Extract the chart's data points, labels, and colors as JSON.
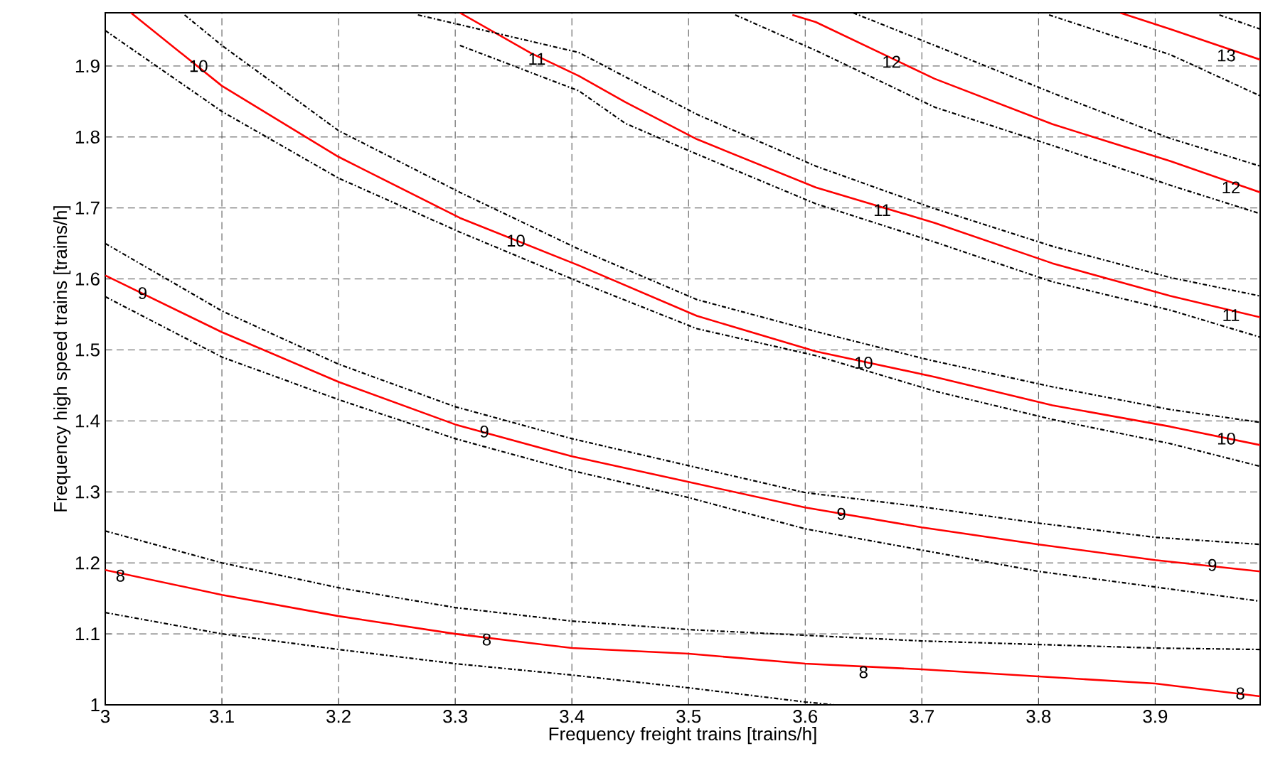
{
  "chart_data": {
    "type": "line",
    "xlabel": "Frequency freight trains [trains/h]",
    "ylabel": "Frequency high speed trains [trains/h]",
    "xlim": [
      3,
      3.99
    ],
    "ylim": [
      1,
      1.975
    ],
    "xticks": [
      3,
      3.1,
      3.2,
      3.3,
      3.4,
      3.5,
      3.6,
      3.7,
      3.8,
      3.9
    ],
    "yticks": [
      1,
      1.1,
      1.2,
      1.3,
      1.4,
      1.5,
      1.6,
      1.7,
      1.8,
      1.9
    ],
    "grid": true,
    "series": [
      {
        "color": "#ff0000",
        "line_style": "solid",
        "x": [
          3.0,
          3.1,
          3.2,
          3.3,
          3.4,
          3.5,
          3.6,
          3.7,
          3.8,
          3.9,
          3.99
        ],
        "values": [
          1.19,
          1.155,
          1.125,
          1.1,
          1.08,
          1.072,
          1.058,
          1.05,
          1.04,
          1.03,
          1.012
        ]
      },
      {
        "color": "#000000",
        "line_style": "dashed",
        "x": [
          3.0,
          3.1,
          3.2,
          3.3,
          3.4,
          3.5,
          3.6,
          3.7,
          3.8,
          3.9,
          3.99
        ],
        "values": [
          1.245,
          1.2,
          1.165,
          1.137,
          1.118,
          1.106,
          1.098,
          1.09,
          1.085,
          1.08,
          1.078
        ]
      },
      {
        "color": "#000000",
        "line_style": "dashed",
        "x": [
          3.0,
          3.1,
          3.2,
          3.3,
          3.4,
          3.5,
          3.6,
          3.625
        ],
        "values": [
          1.13,
          1.1,
          1.078,
          1.058,
          1.042,
          1.024,
          1.004,
          1.0
        ]
      },
      {
        "color": "#ff0000",
        "line_style": "solid",
        "x": [
          3.0,
          3.1,
          3.2,
          3.3,
          3.4,
          3.5,
          3.6,
          3.7,
          3.8,
          3.9,
          3.99
        ],
        "values": [
          1.605,
          1.525,
          1.455,
          1.395,
          1.35,
          1.314,
          1.278,
          1.25,
          1.226,
          1.204,
          1.188
        ]
      },
      {
        "color": "#000000",
        "line_style": "dashed",
        "x": [
          3.0,
          3.1,
          3.2,
          3.3,
          3.4,
          3.5,
          3.6,
          3.7,
          3.8,
          3.9,
          3.99
        ],
        "values": [
          1.65,
          1.555,
          1.48,
          1.42,
          1.375,
          1.337,
          1.299,
          1.279,
          1.256,
          1.236,
          1.226
        ]
      },
      {
        "color": "#000000",
        "line_style": "dashed",
        "x": [
          3.0,
          3.1,
          3.2,
          3.3,
          3.4,
          3.5,
          3.6,
          3.7,
          3.8,
          3.9,
          3.99
        ],
        "values": [
          1.575,
          1.49,
          1.43,
          1.375,
          1.33,
          1.292,
          1.248,
          1.218,
          1.188,
          1.166,
          1.146
        ]
      },
      {
        "color": "#ff0000",
        "line_style": "solid",
        "x": [
          3.022,
          3.1,
          3.2,
          3.304,
          3.406,
          3.507,
          3.609,
          3.711,
          3.812,
          3.913,
          3.99
        ],
        "values": [
          1.975,
          1.872,
          1.772,
          1.686,
          1.619,
          1.548,
          1.498,
          1.462,
          1.422,
          1.392,
          1.366
        ]
      },
      {
        "color": "#000000",
        "line_style": "dashed",
        "x": [
          3.068,
          3.1,
          3.2,
          3.304,
          3.406,
          3.507,
          3.609,
          3.706,
          3.812,
          3.913,
          3.99
        ],
        "values": [
          1.972,
          1.929,
          1.809,
          1.722,
          1.642,
          1.571,
          1.526,
          1.486,
          1.448,
          1.416,
          1.398
        ]
      },
      {
        "color": "#000000",
        "line_style": "dashed",
        "x": [
          3.0,
          3.1,
          3.2,
          3.304,
          3.406,
          3.507,
          3.609,
          3.711,
          3.812,
          3.913,
          3.99
        ],
        "values": [
          1.95,
          1.836,
          1.742,
          1.666,
          1.596,
          1.53,
          1.492,
          1.442,
          1.402,
          1.368,
          1.336
        ]
      },
      {
        "color": "#ff0000",
        "line_style": "solid",
        "x": [
          3.304,
          3.365,
          3.406,
          3.446,
          3.507,
          3.609,
          3.711,
          3.812,
          3.913,
          3.99
        ],
        "values": [
          1.975,
          1.918,
          1.886,
          1.849,
          1.797,
          1.729,
          1.679,
          1.622,
          1.576,
          1.546
        ]
      },
      {
        "color": "#000000",
        "line_style": "dashed",
        "x": [
          3.268,
          3.406,
          3.507,
          3.609,
          3.711,
          3.812,
          3.913,
          3.99
        ],
        "values": [
          1.972,
          1.919,
          1.832,
          1.759,
          1.699,
          1.646,
          1.602,
          1.576
        ]
      },
      {
        "color": "#000000",
        "line_style": "dashed",
        "x": [
          3.304,
          3.406,
          3.446,
          3.507,
          3.609,
          3.711,
          3.812,
          3.913,
          3.99
        ],
        "values": [
          1.929,
          1.865,
          1.819,
          1.776,
          1.706,
          1.652,
          1.596,
          1.556,
          1.518
        ]
      },
      {
        "color": "#ff0000",
        "line_style": "solid",
        "x": [
          3.589,
          3.609,
          3.711,
          3.812,
          3.913,
          3.99
        ],
        "values": [
          1.972,
          1.962,
          1.882,
          1.818,
          1.766,
          1.722
        ]
      },
      {
        "color": "#000000",
        "line_style": "dashed",
        "x": [
          3.641,
          3.711,
          3.812,
          3.913,
          3.99
        ],
        "values": [
          1.975,
          1.929,
          1.862,
          1.798,
          1.759
        ]
      },
      {
        "color": "#000000",
        "line_style": "dashed",
        "x": [
          3.54,
          3.609,
          3.711,
          3.812,
          3.913,
          3.99
        ],
        "values": [
          1.972,
          1.922,
          1.842,
          1.788,
          1.732,
          1.692
        ]
      },
      {
        "color": "#ff0000",
        "line_style": "solid",
        "x": [
          3.87,
          3.913,
          3.99
        ],
        "values": [
          1.975,
          1.952,
          1.909
        ]
      },
      {
        "color": "#000000",
        "line_style": "dashed",
        "x": [
          3.955,
          3.99
        ],
        "values": [
          1.972,
          1.952
        ]
      },
      {
        "color": "#000000",
        "line_style": "dashed",
        "x": [
          3.809,
          3.913,
          3.99
        ],
        "values": [
          1.972,
          1.916,
          1.858
        ]
      }
    ],
    "annotations": [
      {
        "text": "8",
        "x": 3.013,
        "y": 1.182
      },
      {
        "text": "8",
        "x": 3.327,
        "y": 1.092
      },
      {
        "text": "8",
        "x": 3.65,
        "y": 1.046
      },
      {
        "text": "8",
        "x": 3.973,
        "y": 1.016
      },
      {
        "text": "9",
        "x": 3.032,
        "y": 1.58
      },
      {
        "text": "9",
        "x": 3.325,
        "y": 1.385
      },
      {
        "text": "9",
        "x": 3.631,
        "y": 1.269
      },
      {
        "text": "9",
        "x": 3.949,
        "y": 1.197
      },
      {
        "text": "10",
        "x": 3.08,
        "y": 1.9
      },
      {
        "text": "10",
        "x": 3.352,
        "y": 1.654
      },
      {
        "text": "10",
        "x": 3.65,
        "y": 1.482
      },
      {
        "text": "10",
        "x": 3.961,
        "y": 1.375
      },
      {
        "text": "11",
        "x": 3.37,
        "y": 1.91
      },
      {
        "text": "11",
        "x": 3.666,
        "y": 1.697
      },
      {
        "text": "11",
        "x": 3.965,
        "y": 1.549
      },
      {
        "text": "12",
        "x": 3.674,
        "y": 1.906
      },
      {
        "text": "12",
        "x": 3.965,
        "y": 1.729
      },
      {
        "text": "13",
        "x": 3.961,
        "y": 1.915
      }
    ]
  }
}
